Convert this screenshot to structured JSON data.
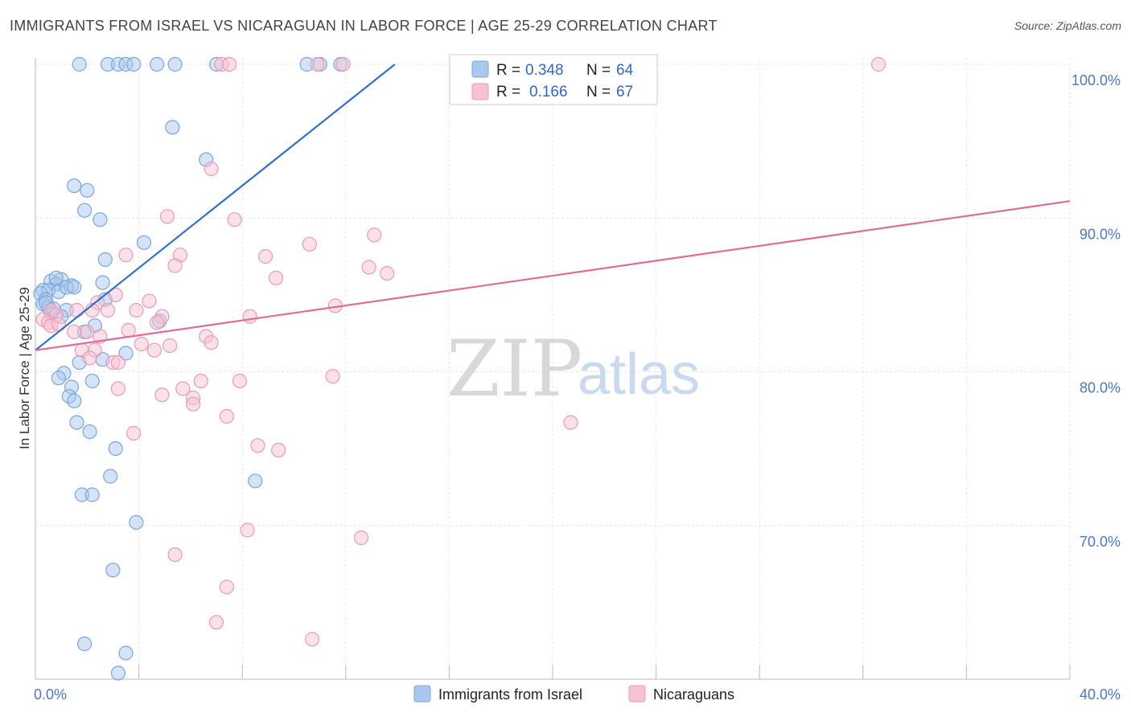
{
  "title": "IMMIGRANTS FROM ISRAEL VS NICARAGUAN IN LABOR FORCE | AGE 25-29 CORRELATION CHART",
  "source": "Source: ZipAtlas.com",
  "watermark": {
    "zip": "ZIP",
    "atlas": "atlas"
  },
  "colors": {
    "blue_fill": "#aac8ee",
    "blue_stroke": "#7aa6dd",
    "blue_line": "#2f6fcc",
    "pink_fill": "#f6c2d3",
    "pink_stroke": "#e99ab5",
    "pink_line": "#e06b96",
    "grid": "#e6e6e6",
    "tick_text": "#4a78c8"
  },
  "legend": {
    "blue": {
      "r_label": "R =",
      "r_value": "0.348",
      "n_label": "N =",
      "n_value": "64"
    },
    "pink": {
      "r_label": "R =",
      "r_value": "0.166",
      "n_label": "N =",
      "n_value": "67"
    }
  },
  "chart_data": {
    "type": "scatter",
    "title": "IMMIGRANTS FROM ISRAEL VS NICARAGUAN IN LABOR FORCE | AGE 25-29 CORRELATION CHART",
    "xlabel": "",
    "ylabel": "In Labor Force | Age 25-29",
    "xlim": [
      0,
      40
    ],
    "ylim": [
      60,
      100
    ],
    "x_tick_labels": [
      "0.0%",
      "40.0%"
    ],
    "y_ticks": [
      70,
      80,
      90,
      100
    ],
    "y_tick_labels": [
      "70.0%",
      "80.0%",
      "90.0%",
      "100.0%"
    ],
    "grid": true,
    "legend_bottom": [
      "Immigrants from Israel",
      "Nicaraguans"
    ],
    "series": [
      {
        "name": "Immigrants from Israel",
        "color": "blue",
        "R": 0.348,
        "N": 64,
        "trend": {
          "x": [
            0,
            13.9
          ],
          "y": [
            81.4,
            100
          ]
        },
        "points": [
          [
            1.7,
            100
          ],
          [
            2.8,
            100
          ],
          [
            3.2,
            100
          ],
          [
            3.5,
            100
          ],
          [
            3.8,
            100
          ],
          [
            4.7,
            100
          ],
          [
            5.4,
            100
          ],
          [
            7.0,
            100
          ],
          [
            10.5,
            100
          ],
          [
            11.0,
            100
          ],
          [
            11.8,
            100
          ],
          [
            5.3,
            95.9
          ],
          [
            6.6,
            93.8
          ],
          [
            1.5,
            92.1
          ],
          [
            2.0,
            91.8
          ],
          [
            1.9,
            90.5
          ],
          [
            2.5,
            89.9
          ],
          [
            4.2,
            88.4
          ],
          [
            2.7,
            87.3
          ],
          [
            0.6,
            85.9
          ],
          [
            1.0,
            86.0
          ],
          [
            0.8,
            85.7
          ],
          [
            1.4,
            85.6
          ],
          [
            2.6,
            85.8
          ],
          [
            0.3,
            85.3
          ],
          [
            0.5,
            85.3
          ],
          [
            0.9,
            85.2
          ],
          [
            0.2,
            85.1
          ],
          [
            0.4,
            84.7
          ],
          [
            2.7,
            84.7
          ],
          [
            0.3,
            84.4
          ],
          [
            0.5,
            84.2
          ],
          [
            1.2,
            84.0
          ],
          [
            0.6,
            83.8
          ],
          [
            1.0,
            83.6
          ],
          [
            4.8,
            83.3
          ],
          [
            2.3,
            83.0
          ],
          [
            1.9,
            82.6
          ],
          [
            3.5,
            81.2
          ],
          [
            2.6,
            80.8
          ],
          [
            1.7,
            80.6
          ],
          [
            1.1,
            79.9
          ],
          [
            0.9,
            79.6
          ],
          [
            2.2,
            79.4
          ],
          [
            1.4,
            79.0
          ],
          [
            1.3,
            78.4
          ],
          [
            1.5,
            78.1
          ],
          [
            1.6,
            76.7
          ],
          [
            2.1,
            76.1
          ],
          [
            3.1,
            75.0
          ],
          [
            8.5,
            72.9
          ],
          [
            2.9,
            73.2
          ],
          [
            1.8,
            72.0
          ],
          [
            2.2,
            72.0
          ],
          [
            3.9,
            70.2
          ],
          [
            3.0,
            67.1
          ],
          [
            1.9,
            62.3
          ],
          [
            3.5,
            61.7
          ],
          [
            3.2,
            60.4
          ],
          [
            0.4,
            84.5
          ],
          [
            0.7,
            84.1
          ],
          [
            1.2,
            85.5
          ],
          [
            0.8,
            86.1
          ],
          [
            1.5,
            85.5
          ]
        ]
      },
      {
        "name": "Nicaraguans",
        "color": "pink",
        "R": 0.166,
        "N": 67,
        "trend": {
          "x": [
            0,
            40
          ],
          "y": [
            81.4,
            91.1
          ]
        },
        "points": [
          [
            7.2,
            100
          ],
          [
            7.5,
            100
          ],
          [
            10.9,
            100
          ],
          [
            11.9,
            100
          ],
          [
            32.6,
            100
          ],
          [
            6.8,
            93.2
          ],
          [
            5.1,
            90.1
          ],
          [
            7.7,
            89.9
          ],
          [
            13.1,
            88.9
          ],
          [
            10.6,
            88.3
          ],
          [
            3.5,
            87.6
          ],
          [
            5.6,
            87.6
          ],
          [
            8.9,
            87.5
          ],
          [
            5.4,
            86.9
          ],
          [
            12.9,
            86.8
          ],
          [
            13.6,
            86.4
          ],
          [
            9.3,
            86.1
          ],
          [
            3.1,
            85.0
          ],
          [
            4.4,
            84.6
          ],
          [
            2.4,
            84.5
          ],
          [
            11.6,
            84.3
          ],
          [
            1.6,
            84.0
          ],
          [
            2.8,
            84.0
          ],
          [
            0.6,
            84.0
          ],
          [
            0.8,
            83.7
          ],
          [
            4.9,
            83.6
          ],
          [
            8.3,
            83.6
          ],
          [
            0.3,
            83.4
          ],
          [
            0.5,
            83.2
          ],
          [
            4.7,
            83.2
          ],
          [
            0.6,
            83.0
          ],
          [
            3.6,
            82.7
          ],
          [
            2.0,
            82.6
          ],
          [
            1.5,
            82.6
          ],
          [
            6.6,
            82.3
          ],
          [
            2.5,
            82.3
          ],
          [
            6.8,
            81.9
          ],
          [
            4.1,
            81.8
          ],
          [
            5.2,
            81.7
          ],
          [
            2.3,
            81.4
          ],
          [
            1.8,
            81.4
          ],
          [
            4.6,
            81.4
          ],
          [
            2.1,
            80.9
          ],
          [
            3.0,
            80.6
          ],
          [
            3.2,
            80.6
          ],
          [
            11.5,
            79.7
          ],
          [
            6.4,
            79.4
          ],
          [
            7.9,
            79.4
          ],
          [
            3.2,
            78.9
          ],
          [
            5.7,
            78.9
          ],
          [
            4.9,
            78.5
          ],
          [
            6.1,
            78.3
          ],
          [
            6.1,
            77.9
          ],
          [
            7.4,
            77.1
          ],
          [
            20.7,
            76.7
          ],
          [
            3.8,
            76.0
          ],
          [
            8.6,
            75.2
          ],
          [
            9.4,
            74.9
          ],
          [
            8.2,
            69.7
          ],
          [
            12.6,
            69.2
          ],
          [
            5.4,
            68.1
          ],
          [
            7.4,
            66.0
          ],
          [
            7.0,
            63.7
          ],
          [
            10.7,
            62.6
          ],
          [
            2.2,
            84.0
          ],
          [
            3.9,
            84.0
          ],
          [
            0.9,
            83.1
          ]
        ]
      }
    ]
  }
}
